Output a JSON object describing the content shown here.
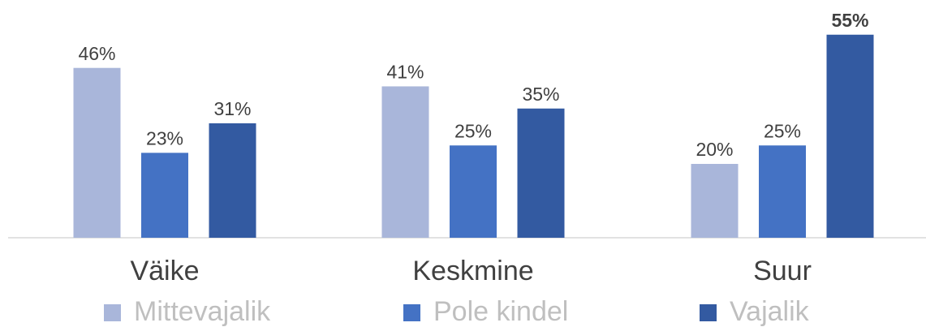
{
  "chart_data": {
    "type": "bar",
    "categories": [
      "Väike",
      "Keskmine",
      "Suur"
    ],
    "series": [
      {
        "name": "Mittevajalik",
        "color": "#a9b6da",
        "values": [
          46,
          41,
          20
        ],
        "value_labels": [
          "46%",
          "41%",
          "20%"
        ]
      },
      {
        "name": "Pole kindel",
        "color": "#4472c4",
        "values": [
          23,
          25,
          25
        ],
        "value_labels": [
          "23%",
          "25%",
          "25%"
        ]
      },
      {
        "name": "Vajalik",
        "color": "#335aa1",
        "values": [
          31,
          35,
          55
        ],
        "value_labels": [
          "31%",
          "35%",
          "55%"
        ]
      }
    ],
    "bold_value_labels": [
      [
        false,
        false,
        false
      ],
      [
        false,
        false,
        false
      ],
      [
        false,
        false,
        true
      ]
    ],
    "ylim": [
      0,
      60
    ],
    "grid": false,
    "legend": "bottom"
  }
}
